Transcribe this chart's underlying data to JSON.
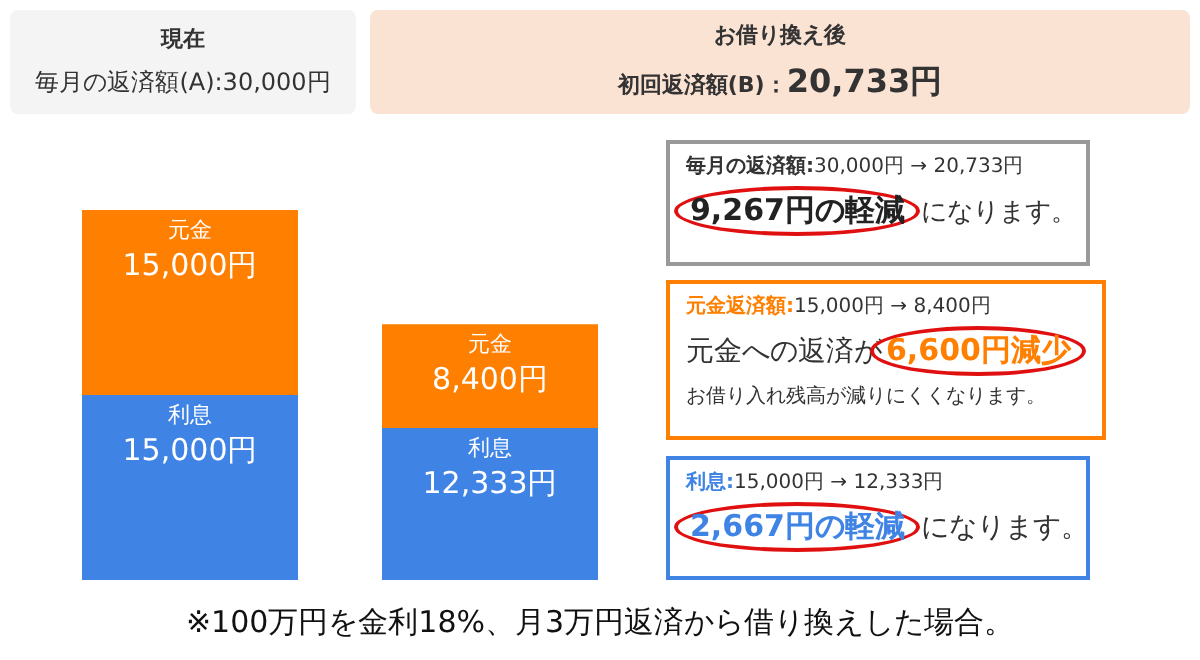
{
  "chart_data": {
    "type": "bar",
    "stacked": true,
    "categories": [
      null,
      null
    ],
    "ylim": [
      0,
      30000
    ],
    "tick_labels": false,
    "legend": false,
    "series": [
      {
        "name": "利息",
        "color": "#3f84e5",
        "values": [
          15000,
          12333
        ],
        "value_labels": [
          "15,000円",
          "12,333円"
        ]
      },
      {
        "name": "元金",
        "color": "#ff7f00",
        "values": [
          15000,
          8400
        ],
        "value_labels": [
          "15,000円",
          "8,400円"
        ]
      }
    ],
    "annotations": [
      "現在",
      "毎月の返済額(A):30,000円",
      "お借り換え後",
      "初回返済額(B)：",
      "20,733円",
      "毎月の返済額:",
      "30,000円 → 20,733円",
      "9,267円の軽減",
      "になります。",
      "元金返済額:",
      "15,000円 → 8,400円",
      "元金への返済が",
      "6,600円減少",
      "お借り入れ残高が減りにくくなります。",
      "利息:",
      "15,000円 → 12,333円",
      "2,667円の軽減",
      "になります。",
      "※100万円を金利18%、月3万円返済から借り換えした場合。"
    ]
  }
}
